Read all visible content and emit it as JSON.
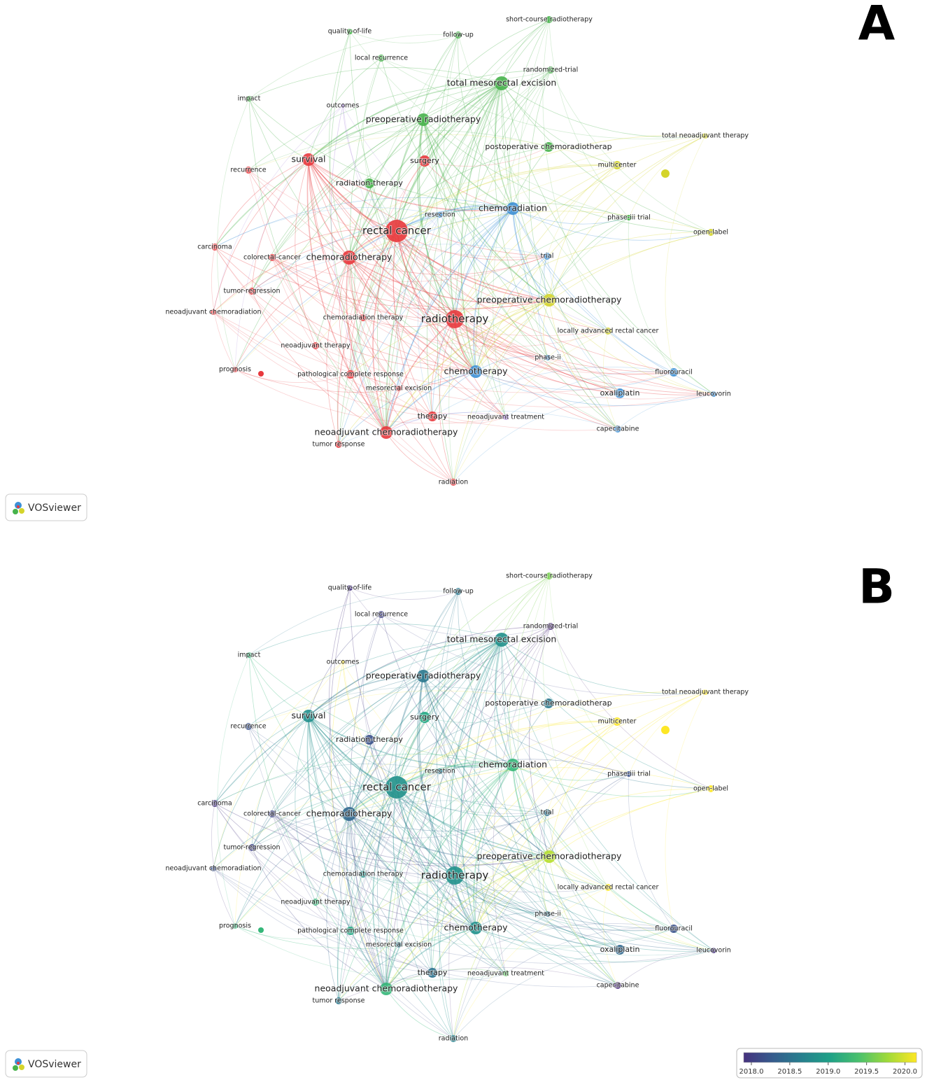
{
  "logo": "VOSviewer",
  "panels": [
    {
      "label": "A",
      "nodes": [
        {
          "label": "quality-of-life",
          "color": "#47b34b"
        },
        {
          "label": "follow-up",
          "color": "#47b34b"
        },
        {
          "label": "short-course radiotherapy",
          "color": "#47b34b"
        },
        {
          "label": "local recurrence",
          "color": "#47b34b"
        },
        {
          "label": "randomized-trial",
          "color": "#47b34b"
        },
        {
          "label": "total mesorectal excision",
          "color": "#47b34b"
        },
        {
          "label": "impact",
          "color": "#47b34b"
        },
        {
          "label": "outcomes",
          "color": "#a07ad6"
        },
        {
          "label": "preoperative radiotherapy",
          "color": "#47b34b"
        },
        {
          "label": "total neoadjuvant therapy",
          "color": "#d4d42a"
        },
        {
          "label": "survival",
          "color": "#e8383d"
        },
        {
          "label": "surgery",
          "color": "#e8383d"
        },
        {
          "label": "postoperative chemoradiotherap",
          "color": "#47b34b"
        },
        {
          "label": "multicenter",
          "color": "#d4d42a"
        },
        {
          "label": "recurrence",
          "color": "#e8383d"
        },
        {
          "label": "radiation-therapy",
          "color": "#47b34b"
        },
        {
          "label": "chemoradiation",
          "color": "#3d90d6"
        },
        {
          "label": "resection",
          "color": "#3d90d6"
        },
        {
          "label": "phase-iii trial",
          "color": "#47b34b"
        },
        {
          "label": "rectal cancer",
          "color": "#e8383d"
        },
        {
          "label": "open-label",
          "color": "#d4d42a"
        },
        {
          "label": "carcinoma",
          "color": "#e8383d"
        },
        {
          "label": "colorectal-cancer",
          "color": "#e8383d"
        },
        {
          "label": "chemoradiotherapy",
          "color": "#e8383d"
        },
        {
          "label": "trial",
          "color": "#3d90d6"
        },
        {
          "label": "tumor-regression",
          "color": "#e8383d"
        },
        {
          "label": "preoperative chemoradiotherapy",
          "color": "#d4d42a"
        },
        {
          "label": "neoadjuvant chemoradiation",
          "color": "#e8383d"
        },
        {
          "label": "chemoradiation therapy",
          "color": "#e8383d"
        },
        {
          "label": "radiotherapy",
          "color": "#e8383d"
        },
        {
          "label": "locally advanced rectal cancer",
          "color": "#d4d42a"
        },
        {
          "label": "neoadjuvant therapy",
          "color": "#e8383d"
        },
        {
          "label": "phase-ii",
          "color": "#3d90d6"
        },
        {
          "label": "prognosis",
          "color": "#e8383d"
        },
        {
          "label": "chemotherapy",
          "color": "#3d90d6"
        },
        {
          "label": "fluorouracil",
          "color": "#3d90d6"
        },
        {
          "label": "pathological complete response",
          "color": "#e8383d"
        },
        {
          "label": "mesorectal excision",
          "color": "#e8383d"
        },
        {
          "label": "oxaliplatin",
          "color": "#3d90d6"
        },
        {
          "label": "leucovorin",
          "color": "#3d90d6"
        },
        {
          "label": "therapy",
          "color": "#e8383d"
        },
        {
          "label": "neoadjuvant treatment",
          "color": "#a07ad6"
        },
        {
          "label": "capecitabine",
          "color": "#3d90d6"
        },
        {
          "label": "neoadjuvant chemoradiotherapy",
          "color": "#e8383d"
        },
        {
          "label": "tumor response",
          "color": "#e8383d"
        },
        {
          "label": "radiation",
          "color": "#e8383d"
        }
      ]
    },
    {
      "label": "B",
      "nodes": [
        {
          "label": "quality-of-life",
          "color": "#46327e"
        },
        {
          "label": "follow-up",
          "color": "#2a788e"
        },
        {
          "label": "short-course radiotherapy",
          "color": "#7ad151"
        },
        {
          "label": "local recurrence",
          "color": "#414487"
        },
        {
          "label": "randomized-trial",
          "color": "#482878"
        },
        {
          "label": "total mesorectal excision",
          "color": "#21918c"
        },
        {
          "label": "impact",
          "color": "#35b779"
        },
        {
          "label": "outcomes",
          "color": "#fde725"
        },
        {
          "label": "preoperative radiotherapy",
          "color": "#2a788e"
        },
        {
          "label": "total neoadjuvant therapy",
          "color": "#fde725"
        },
        {
          "label": "survival",
          "color": "#21908d"
        },
        {
          "label": "surgery",
          "color": "#22a884"
        },
        {
          "label": "postoperative chemoradiotherap",
          "color": "#2a788e"
        },
        {
          "label": "multicenter",
          "color": "#fde725"
        },
        {
          "label": "recurrence",
          "color": "#3b528b"
        },
        {
          "label": "radiation-therapy",
          "color": "#3b528b"
        },
        {
          "label": "chemoradiation",
          "color": "#35b779"
        },
        {
          "label": "resection",
          "color": "#2a788e"
        },
        {
          "label": "phase-iii trial",
          "color": "#3b528b"
        },
        {
          "label": "rectal cancer",
          "color": "#21918c"
        },
        {
          "label": "open-label",
          "color": "#fde725"
        },
        {
          "label": "carcinoma",
          "color": "#46337e"
        },
        {
          "label": "colorectal-cancer",
          "color": "#414487"
        },
        {
          "label": "chemoradiotherapy",
          "color": "#31688e"
        },
        {
          "label": "trial",
          "color": "#2c728e"
        },
        {
          "label": "tumor-regression",
          "color": "#414487"
        },
        {
          "label": "preoperative chemoradiotherapy",
          "color": "#b5de2b"
        },
        {
          "label": "neoadjuvant chemoradiation",
          "color": "#3b528b"
        },
        {
          "label": "chemoradiation therapy",
          "color": "#21918c"
        },
        {
          "label": "radiotherapy",
          "color": "#21918c"
        },
        {
          "label": "locally advanced rectal cancer",
          "color": "#fde725"
        },
        {
          "label": "neoadjuvant therapy",
          "color": "#35b779"
        },
        {
          "label": "phase-ii",
          "color": "#2c728e"
        },
        {
          "label": "prognosis",
          "color": "#35b779"
        },
        {
          "label": "chemotherapy",
          "color": "#21918c"
        },
        {
          "label": "fluorouracil",
          "color": "#3b528b"
        },
        {
          "label": "pathological complete response",
          "color": "#22a884"
        },
        {
          "label": "mesorectal excision",
          "color": "#2a788e"
        },
        {
          "label": "oxaliplatin",
          "color": "#31688e"
        },
        {
          "label": "leucovorin",
          "color": "#46327e"
        },
        {
          "label": "therapy",
          "color": "#2c728e"
        },
        {
          "label": "neoadjuvant treatment",
          "color": "#5ec962"
        },
        {
          "label": "capecitabine",
          "color": "#482878"
        },
        {
          "label": "neoadjuvant chemoradiotherapy",
          "color": "#35b779"
        },
        {
          "label": "tumor response",
          "color": "#2a788e"
        },
        {
          "label": "radiation",
          "color": "#26828e"
        }
      ]
    }
  ],
  "colorbar": {
    "range": [
      2017.9,
      2020.15
    ],
    "colors": [
      "#46327e",
      "#365c8d",
      "#277f8e",
      "#1fa187",
      "#4ac16d",
      "#a0da39",
      "#fde725"
    ],
    "ticks": [
      {
        "value": 2018,
        "label": "2018.0"
      },
      {
        "value": 2018.5,
        "label": "2018.5"
      },
      {
        "value": 2019,
        "label": "2019.0"
      },
      {
        "value": 2019.5,
        "label": "2019.5"
      },
      {
        "value": 2020,
        "label": "2020.0"
      }
    ]
  }
}
